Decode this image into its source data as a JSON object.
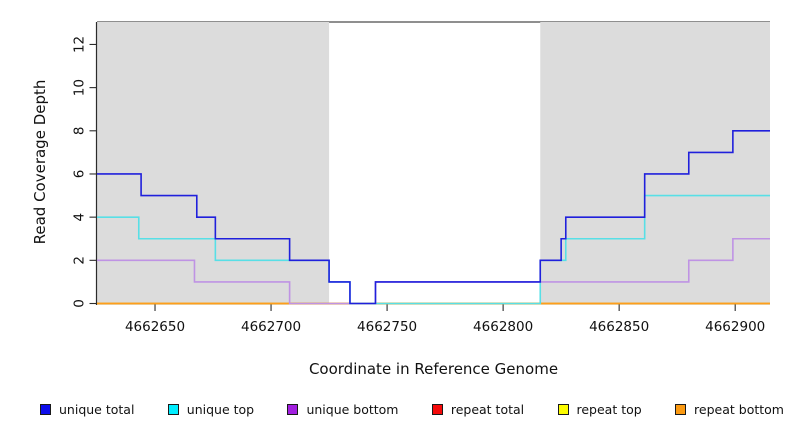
{
  "chart_data": {
    "type": "line",
    "subtype": "step-coverage",
    "title": "",
    "xlabel": "Coordinate in Reference Genome",
    "ylabel": "Read Coverage Depth",
    "xlim": [
      4662625,
      4662915
    ],
    "ylim": [
      0,
      13.04
    ],
    "x_ticks": [
      4662650,
      4662700,
      4662750,
      4662800,
      4662850,
      4662900
    ],
    "y_ticks": [
      0,
      2,
      4,
      6,
      8,
      10,
      12
    ],
    "grid": false,
    "legend_position": "bottom",
    "plot_background": "#ffffff",
    "border_color": "#6a6a6a",
    "axis_color": "#2b2b2b",
    "highlight_regions": [
      {
        "x1": 4662625,
        "x2": 4662725,
        "color": "#DCDCDC"
      },
      {
        "x1": 4662816,
        "x2": 4662915,
        "color": "#DCDCDC"
      }
    ],
    "series": [
      {
        "name": "unique total",
        "color": "#2020DC",
        "swatch": "#0D0DEB",
        "steps": [
          [
            4662625,
            6
          ],
          [
            4662644,
            5
          ],
          [
            4662668,
            4
          ],
          [
            4662676,
            3
          ],
          [
            4662708,
            2
          ],
          [
            4662725,
            1
          ],
          [
            4662734,
            0
          ],
          [
            4662745,
            1
          ],
          [
            4662816,
            2
          ],
          [
            4662825,
            3
          ],
          [
            4662827,
            4
          ],
          [
            4662861,
            6
          ],
          [
            4662880,
            7
          ],
          [
            4662899,
            8
          ]
        ],
        "x_end": 4662915
      },
      {
        "name": "unique top",
        "color": "#58DFE6",
        "swatch": "#00EEFF",
        "steps": [
          [
            4662625,
            4
          ],
          [
            4662643,
            3
          ],
          [
            4662676,
            2
          ],
          [
            4662725,
            1
          ],
          [
            4662734,
            0
          ],
          [
            4662816,
            2
          ],
          [
            4662827,
            3
          ],
          [
            4662861,
            5
          ]
        ],
        "x_end": 4662915
      },
      {
        "name": "unique bottom",
        "color": "#BF93E4",
        "swatch": "#A21FE0",
        "steps": [
          [
            4662625,
            2
          ],
          [
            4662667,
            1
          ],
          [
            4662708,
            0
          ],
          [
            4662745,
            1
          ],
          [
            4662880,
            2
          ],
          [
            4662899,
            3
          ]
        ],
        "x_end": 4662915
      },
      {
        "name": "repeat total",
        "color": "#DC1414",
        "swatch": "#F50A0A",
        "steps": [
          [
            4662625,
            0
          ]
        ],
        "x_end": 4662915
      },
      {
        "name": "repeat top",
        "color": "#F0F000",
        "swatch": "#FCFC00",
        "steps": [
          [
            4662625,
            0
          ]
        ],
        "x_end": 4662915
      },
      {
        "name": "repeat bottom",
        "color": "#FF9E1B",
        "swatch": "#FB9A12",
        "steps": [
          [
            4662625,
            0
          ]
        ],
        "x_end": 4662915
      }
    ],
    "draw_order": [
      "repeat total",
      "repeat top",
      "repeat bottom",
      "unique bottom",
      "unique top",
      "unique total"
    ]
  }
}
